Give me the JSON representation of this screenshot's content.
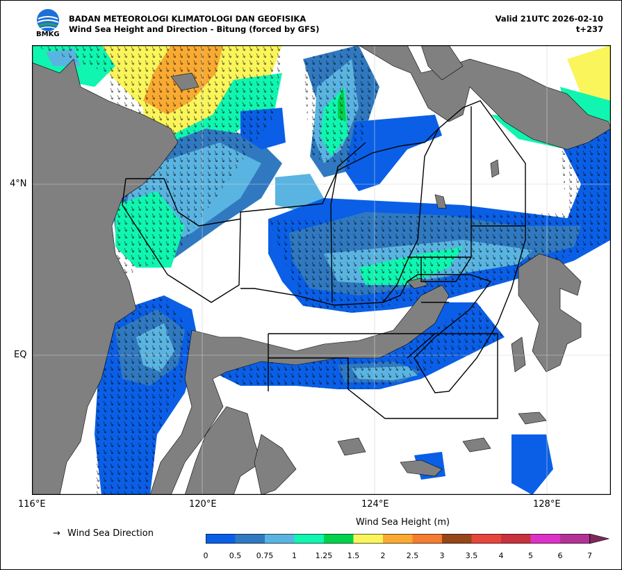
{
  "header": {
    "agency": "BADAN METEOROLOGI KLIMATOLOGI DAN GEOFISIKA",
    "subtitle": "Wind Sea Height and Direction - Bitung (forced by GFS)",
    "valid": "Valid 21UTC 2026-02-10",
    "lead": "t+237",
    "logo_text": "BMKG"
  },
  "axes": {
    "x_ticks": [
      "116°E",
      "120°E",
      "124°E",
      "128°E"
    ],
    "y_ticks": [
      "4°N",
      "EQ"
    ],
    "x_range_deg": [
      116,
      129.5
    ],
    "y_range_deg": [
      -3.3,
      7.2
    ]
  },
  "legend": {
    "arrow_glyph": "→",
    "arrow_label": "Wind Sea Direction",
    "colorbar_title": "Wind Sea Height (m)",
    "colorbar_ticks": [
      "0",
      "0.5",
      "0.75",
      "1",
      "1.25",
      "1.5",
      "2",
      "2.5",
      "3",
      "3.5",
      "4",
      "5",
      "6",
      "7"
    ],
    "colorbar_colors": [
      "#0a5fe6",
      "#3079c0",
      "#5ab4e2",
      "#10f5b0",
      "#00d24b",
      "#faf55a",
      "#f9aa32",
      "#f47d31",
      "#964619",
      "#e6463c",
      "#c8323c",
      "#dc32c8",
      "#b43296",
      "#7a2a58"
    ],
    "colorbar_extend": "max"
  },
  "colors": {
    "land": "#808080",
    "sea_calm": "#ffffff",
    "boundary": "#000000"
  }
}
